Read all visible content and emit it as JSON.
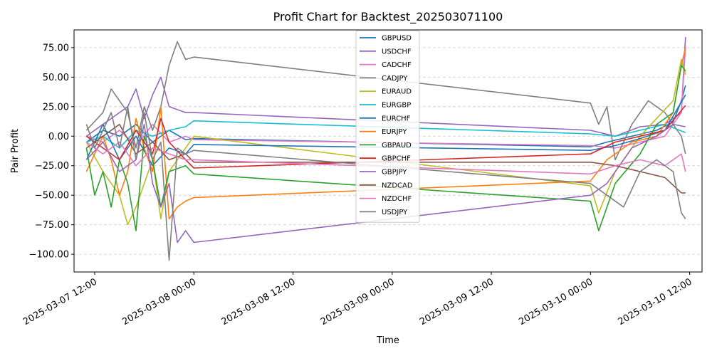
{
  "chart_data": {
    "type": "line",
    "title": "Profit Chart for Backtest_202503071100",
    "xlabel": "Time",
    "ylabel": "Pair Profit",
    "x_axis_type": "datetime",
    "xlim": [
      "2025-03-07 09:30",
      "2025-03-10 13:30"
    ],
    "ylim": [
      -115,
      90
    ],
    "x_ticks": [
      "2025-03-07 12:00",
      "2025-03-08 00:00",
      "2025-03-08 12:00",
      "2025-03-09 00:00",
      "2025-03-09 12:00",
      "2025-03-10 00:00",
      "2025-03-10 12:00"
    ],
    "y_ticks": [
      75,
      50,
      25,
      0,
      -25,
      -50,
      -75,
      -100
    ],
    "y_tick_labels": [
      "75.00",
      "50.00",
      "25.00",
      "0.00",
      "−25.00",
      "−50.00",
      "−75.00",
      "−100.00"
    ],
    "grid": "horizontal dashed",
    "legend_position": "top-center",
    "series": [
      {
        "name": "GBPUSD",
        "color": "#1f77b4",
        "points": [
          [
            "2025-03-07 11:00",
            -5
          ],
          [
            "2025-03-07 13:00",
            5
          ],
          [
            "2025-03-07 15:00",
            0
          ],
          [
            "2025-03-07 17:00",
            10
          ],
          [
            "2025-03-07 19:00",
            -5
          ],
          [
            "2025-03-07 21:00",
            5
          ],
          [
            "2025-03-07 23:00",
            -3
          ],
          [
            "2025-03-08 00:00",
            -2
          ],
          [
            "2025-03-10 00:00",
            -9
          ],
          [
            "2025-03-10 02:00",
            -5
          ],
          [
            "2025-03-10 05:00",
            0
          ],
          [
            "2025-03-10 08:00",
            5
          ],
          [
            "2025-03-10 10:00",
            12
          ],
          [
            "2025-03-10 11:00",
            30
          ],
          [
            "2025-03-10 11:30",
            43
          ]
        ]
      },
      {
        "name": "USDCHF",
        "color": "#9467bd",
        "points": [
          [
            "2025-03-07 11:00",
            0
          ],
          [
            "2025-03-07 13:00",
            10
          ],
          [
            "2025-03-07 15:00",
            20
          ],
          [
            "2025-03-07 16:00",
            25
          ],
          [
            "2025-03-07 17:00",
            40
          ],
          [
            "2025-03-07 18:00",
            15
          ],
          [
            "2025-03-07 19:00",
            35
          ],
          [
            "2025-03-07 20:00",
            50
          ],
          [
            "2025-03-07 21:00",
            25
          ],
          [
            "2025-03-07 23:00",
            20
          ],
          [
            "2025-03-08 00:00",
            20
          ],
          [
            "2025-03-10 00:00",
            5
          ],
          [
            "2025-03-10 03:00",
            0
          ],
          [
            "2025-03-10 06:00",
            8
          ],
          [
            "2025-03-10 09:00",
            10
          ],
          [
            "2025-03-10 11:00",
            20
          ],
          [
            "2025-03-10 11:30",
            84
          ]
        ]
      },
      {
        "name": "CADCHF",
        "color": "#e377c2",
        "points": [
          [
            "2025-03-07 11:00",
            0
          ],
          [
            "2025-03-07 13:00",
            -5
          ],
          [
            "2025-03-07 15:00",
            5
          ],
          [
            "2025-03-07 17:00",
            -8
          ],
          [
            "2025-03-07 19:00",
            10
          ],
          [
            "2025-03-07 21:00",
            -5
          ],
          [
            "2025-03-07 23:00",
            0
          ],
          [
            "2025-03-08 00:00",
            -3
          ],
          [
            "2025-03-10 00:00",
            -8
          ],
          [
            "2025-03-10 03:00",
            -10
          ],
          [
            "2025-03-10 06:00",
            -5
          ],
          [
            "2025-03-10 09:00",
            0
          ],
          [
            "2025-03-10 11:00",
            20
          ],
          [
            "2025-03-10 11:30",
            76
          ]
        ]
      },
      {
        "name": "CADJPY",
        "color": "#7f7f7f",
        "points": [
          [
            "2025-03-07 11:00",
            5
          ],
          [
            "2025-03-07 13:00",
            20
          ],
          [
            "2025-03-07 14:00",
            40
          ],
          [
            "2025-03-07 15:00",
            30
          ],
          [
            "2025-03-07 16:00",
            20
          ],
          [
            "2025-03-07 17:00",
            -10
          ],
          [
            "2025-03-07 18:00",
            25
          ],
          [
            "2025-03-07 19:00",
            5
          ],
          [
            "2025-03-07 20:00",
            25
          ],
          [
            "2025-03-07 21:00",
            60
          ],
          [
            "2025-03-07 22:00",
            80
          ],
          [
            "2025-03-07 23:00",
            65
          ],
          [
            "2025-03-08 00:00",
            67
          ],
          [
            "2025-03-10 00:00",
            28
          ],
          [
            "2025-03-10 01:00",
            10
          ],
          [
            "2025-03-10 02:00",
            25
          ],
          [
            "2025-03-10 03:00",
            -20
          ],
          [
            "2025-03-10 05:00",
            10
          ],
          [
            "2025-03-10 07:00",
            30
          ],
          [
            "2025-03-10 09:00",
            20
          ],
          [
            "2025-03-10 11:00",
            0
          ],
          [
            "2025-03-10 11:30",
            -15
          ]
        ]
      },
      {
        "name": "EURAUD",
        "color": "#bcbd22",
        "points": [
          [
            "2025-03-07 11:00",
            -5
          ],
          [
            "2025-03-07 13:00",
            -30
          ],
          [
            "2025-03-07 15:00",
            -50
          ],
          [
            "2025-03-07 16:00",
            -75
          ],
          [
            "2025-03-07 17:00",
            -60
          ],
          [
            "2025-03-07 18:00",
            -40
          ],
          [
            "2025-03-07 19:00",
            -20
          ],
          [
            "2025-03-07 20:00",
            -70
          ],
          [
            "2025-03-07 21:00",
            -30
          ],
          [
            "2025-03-07 23:00",
            -10
          ],
          [
            "2025-03-08 00:00",
            0
          ],
          [
            "2025-03-10 00:00",
            -42
          ],
          [
            "2025-03-10 01:00",
            -65
          ],
          [
            "2025-03-10 03:00",
            -30
          ],
          [
            "2025-03-10 06:00",
            0
          ],
          [
            "2025-03-10 08:00",
            15
          ],
          [
            "2025-03-10 10:00",
            30
          ],
          [
            "2025-03-10 11:00",
            65
          ],
          [
            "2025-03-10 11:30",
            52
          ]
        ]
      },
      {
        "name": "EURGBP",
        "color": "#17becf",
        "points": [
          [
            "2025-03-07 11:00",
            -5
          ],
          [
            "2025-03-07 13:00",
            0
          ],
          [
            "2025-03-07 15:00",
            -10
          ],
          [
            "2025-03-07 17:00",
            5
          ],
          [
            "2025-03-07 19:00",
            0
          ],
          [
            "2025-03-07 21:00",
            5
          ],
          [
            "2025-03-07 23:00",
            8
          ],
          [
            "2025-03-08 00:00",
            13
          ],
          [
            "2025-03-10 00:00",
            2
          ],
          [
            "2025-03-10 03:00",
            0
          ],
          [
            "2025-03-10 06:00",
            5
          ],
          [
            "2025-03-10 09:00",
            10
          ],
          [
            "2025-03-10 11:30",
            3
          ]
        ]
      },
      {
        "name": "EURCHF",
        "color": "#1f77b4",
        "points": [
          [
            "2025-03-07 11:00",
            -20
          ],
          [
            "2025-03-07 13:00",
            10
          ],
          [
            "2025-03-07 15:00",
            -20
          ],
          [
            "2025-03-07 17:00",
            0
          ],
          [
            "2025-03-07 19:00",
            -25
          ],
          [
            "2025-03-07 21:00",
            -10
          ],
          [
            "2025-03-07 23:00",
            -15
          ],
          [
            "2025-03-08 00:00",
            -7
          ],
          [
            "2025-03-10 00:00",
            -12
          ],
          [
            "2025-03-10 03:00",
            -8
          ],
          [
            "2025-03-10 06:00",
            -2
          ],
          [
            "2025-03-10 09:00",
            5
          ],
          [
            "2025-03-10 11:30",
            35
          ]
        ]
      },
      {
        "name": "EURJPY",
        "color": "#ff7f0e",
        "points": [
          [
            "2025-03-07 11:00",
            -30
          ],
          [
            "2025-03-07 13:00",
            0
          ],
          [
            "2025-03-07 14:00",
            -20
          ],
          [
            "2025-03-07 15:00",
            -50
          ],
          [
            "2025-03-07 16:00",
            -30
          ],
          [
            "2025-03-07 17:00",
            15
          ],
          [
            "2025-03-07 18:00",
            -10
          ],
          [
            "2025-03-07 19:00",
            -30
          ],
          [
            "2025-03-07 20:00",
            25
          ],
          [
            "2025-03-07 21:00",
            -70
          ],
          [
            "2025-03-07 22:00",
            -60
          ],
          [
            "2025-03-07 23:00",
            -55
          ],
          [
            "2025-03-08 00:00",
            -52
          ],
          [
            "2025-03-10 00:00",
            -38
          ],
          [
            "2025-03-10 02:00",
            -20
          ],
          [
            "2025-03-10 05:00",
            -5
          ],
          [
            "2025-03-10 08:00",
            0
          ],
          [
            "2025-03-10 10:00",
            20
          ],
          [
            "2025-03-10 11:00",
            60
          ],
          [
            "2025-03-10 11:30",
            75
          ]
        ]
      },
      {
        "name": "GBPAUD",
        "color": "#2ca02c",
        "points": [
          [
            "2025-03-07 11:00",
            -10
          ],
          [
            "2025-03-07 12:00",
            -50
          ],
          [
            "2025-03-07 13:00",
            -30
          ],
          [
            "2025-03-07 14:00",
            -60
          ],
          [
            "2025-03-07 15:00",
            -20
          ],
          [
            "2025-03-07 16:00",
            -40
          ],
          [
            "2025-03-07 17:00",
            -80
          ],
          [
            "2025-03-07 18:00",
            0
          ],
          [
            "2025-03-07 19:00",
            -20
          ],
          [
            "2025-03-07 20:00",
            -60
          ],
          [
            "2025-03-07 21:00",
            -30
          ],
          [
            "2025-03-07 23:00",
            -25
          ],
          [
            "2025-03-08 00:00",
            -32
          ],
          [
            "2025-03-10 00:00",
            -55
          ],
          [
            "2025-03-10 01:00",
            -80
          ],
          [
            "2025-03-10 03:00",
            -40
          ],
          [
            "2025-03-10 06:00",
            -15
          ],
          [
            "2025-03-10 08:00",
            10
          ],
          [
            "2025-03-10 10:00",
            20
          ],
          [
            "2025-03-10 11:00",
            60
          ],
          [
            "2025-03-10 11:30",
            55
          ]
        ]
      },
      {
        "name": "GBPCHF",
        "color": "#d62728",
        "points": [
          [
            "2025-03-07 11:00",
            0
          ],
          [
            "2025-03-07 13:00",
            -10
          ],
          [
            "2025-03-07 15:00",
            -20
          ],
          [
            "2025-03-07 17:00",
            5
          ],
          [
            "2025-03-07 19:00",
            -15
          ],
          [
            "2025-03-07 20:00",
            15
          ],
          [
            "2025-03-07 21:00",
            -5
          ],
          [
            "2025-03-07 23:00",
            -20
          ],
          [
            "2025-03-08 00:00",
            -27
          ],
          [
            "2025-03-10 00:00",
            -15
          ],
          [
            "2025-03-10 03:00",
            -5
          ],
          [
            "2025-03-10 06:00",
            0
          ],
          [
            "2025-03-10 09:00",
            5
          ],
          [
            "2025-03-10 11:30",
            26
          ]
        ]
      },
      {
        "name": "GBPJPY",
        "color": "#9467bd",
        "points": [
          [
            "2025-03-07 11:00",
            -20
          ],
          [
            "2025-03-07 13:00",
            -5
          ],
          [
            "2025-03-07 15:00",
            -30
          ],
          [
            "2025-03-07 17:00",
            -20
          ],
          [
            "2025-03-07 18:00",
            10
          ],
          [
            "2025-03-07 19:00",
            -40
          ],
          [
            "2025-03-07 20:00",
            -60
          ],
          [
            "2025-03-07 21:00",
            -40
          ],
          [
            "2025-03-07 22:00",
            -90
          ],
          [
            "2025-03-07 23:00",
            -80
          ],
          [
            "2025-03-08 00:00",
            -90
          ],
          [
            "2025-03-10 00:00",
            -50
          ],
          [
            "2025-03-10 02:00",
            -40
          ],
          [
            "2025-03-10 05:00",
            -10
          ],
          [
            "2025-03-10 08:00",
            0
          ],
          [
            "2025-03-10 10:00",
            10
          ],
          [
            "2025-03-10 11:30",
            8
          ]
        ]
      },
      {
        "name": "NZDCAD",
        "color": "#8c564b",
        "points": [
          [
            "2025-03-07 11:00",
            -10
          ],
          [
            "2025-03-07 13:00",
            0
          ],
          [
            "2025-03-07 15:00",
            10
          ],
          [
            "2025-03-07 17:00",
            -15
          ],
          [
            "2025-03-07 19:00",
            -5
          ],
          [
            "2025-03-07 21:00",
            -20
          ],
          [
            "2025-03-07 23:00",
            -15
          ],
          [
            "2025-03-08 00:00",
            -22
          ],
          [
            "2025-03-10 00:00",
            -22
          ],
          [
            "2025-03-10 03:00",
            -25
          ],
          [
            "2025-03-10 06:00",
            -30
          ],
          [
            "2025-03-10 09:00",
            -35
          ],
          [
            "2025-03-10 11:00",
            -48
          ],
          [
            "2025-03-10 11:30",
            -48
          ]
        ]
      },
      {
        "name": "NZDCHF",
        "color": "#e377c2",
        "points": [
          [
            "2025-03-07 11:00",
            -5
          ],
          [
            "2025-03-07 13:00",
            -15
          ],
          [
            "2025-03-07 15:00",
            -5
          ],
          [
            "2025-03-07 17:00",
            -25
          ],
          [
            "2025-03-07 19:00",
            -10
          ],
          [
            "2025-03-07 21:00",
            -15
          ],
          [
            "2025-03-07 23:00",
            -20
          ],
          [
            "2025-03-08 00:00",
            -20
          ],
          [
            "2025-03-10 00:00",
            -32
          ],
          [
            "2025-03-10 03:00",
            -25
          ],
          [
            "2025-03-10 06:00",
            -20
          ],
          [
            "2025-03-10 09:00",
            -25
          ],
          [
            "2025-03-10 11:00",
            -15
          ],
          [
            "2025-03-10 11:30",
            -30
          ]
        ]
      },
      {
        "name": "USDJPY",
        "color": "#7f7f7f",
        "points": [
          [
            "2025-03-07 11:00",
            10
          ],
          [
            "2025-03-07 12:00",
            -10
          ],
          [
            "2025-03-07 14:00",
            20
          ],
          [
            "2025-03-07 15:00",
            -10
          ],
          [
            "2025-03-07 16:00",
            25
          ],
          [
            "2025-03-07 17:00",
            -20
          ],
          [
            "2025-03-07 18:00",
            20
          ],
          [
            "2025-03-07 19:00",
            -20
          ],
          [
            "2025-03-07 20:00",
            -5
          ],
          [
            "2025-03-07 21:00",
            -105
          ],
          [
            "2025-03-07 22:00",
            -10
          ],
          [
            "2025-03-07 23:00",
            -15
          ],
          [
            "2025-03-08 00:00",
            -12
          ],
          [
            "2025-03-10 00:00",
            -40
          ],
          [
            "2025-03-10 02:00",
            -50
          ],
          [
            "2025-03-10 04:00",
            -60
          ],
          [
            "2025-03-10 06:00",
            -30
          ],
          [
            "2025-03-10 08:00",
            -20
          ],
          [
            "2025-03-10 10:00",
            -30
          ],
          [
            "2025-03-10 11:00",
            -65
          ],
          [
            "2025-03-10 11:30",
            -70
          ]
        ]
      }
    ]
  }
}
